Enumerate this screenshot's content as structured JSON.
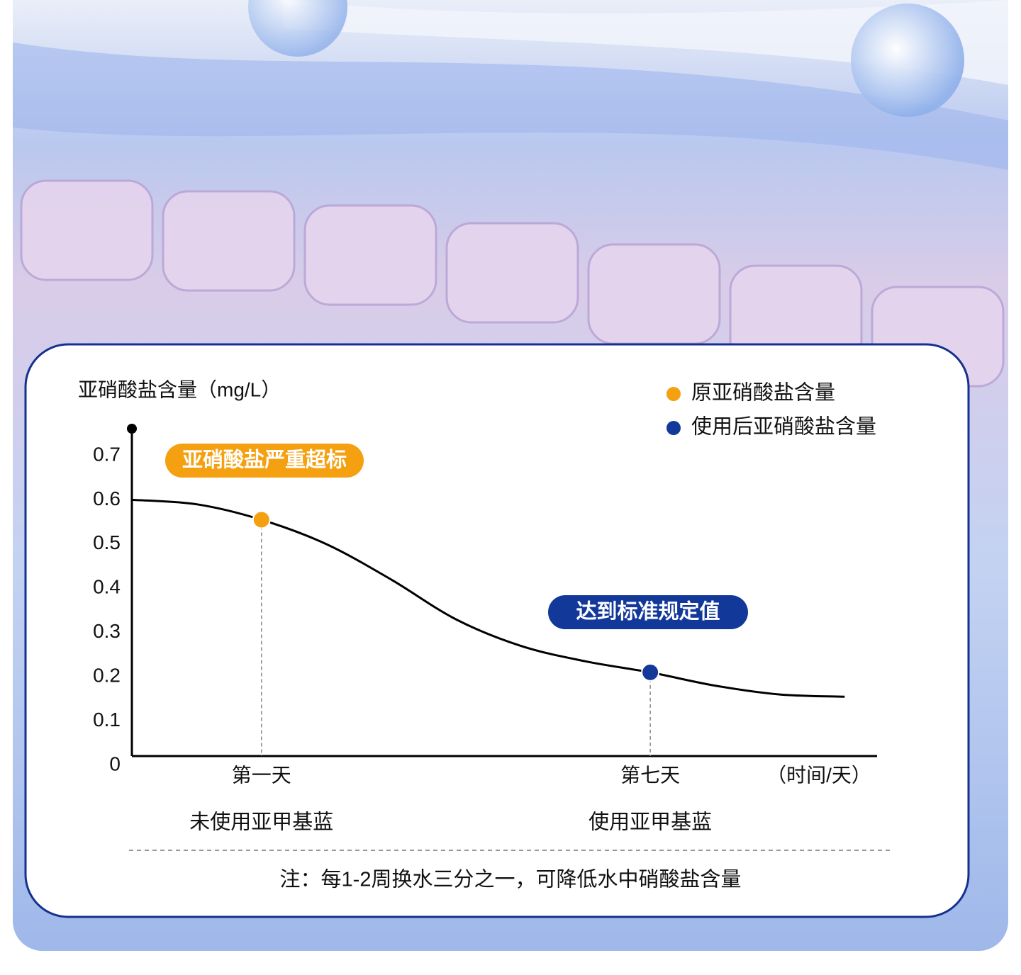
{
  "chart_data": {
    "type": "line",
    "y_axis_label": "亚硝酸盐含量（mg/L）",
    "x_axis_label": "（时间/天）",
    "xlim": [
      -1,
      10.5
    ],
    "xticks": [
      {
        "value": 1,
        "label": "第一天"
      },
      {
        "value": 7,
        "label": "第七天"
      }
    ],
    "x_sublabels": [
      "未使用亚甲基蓝",
      "使用亚甲基蓝"
    ],
    "ylim": [
      0,
      0.75
    ],
    "yticks": [
      0,
      0.1,
      0.2,
      0.3,
      0.4,
      0.5,
      0.6,
      0.7
    ],
    "curve": {
      "color": "#000000",
      "x": [
        -1,
        0,
        1,
        2,
        3,
        4,
        5,
        6,
        7,
        8,
        9,
        10
      ],
      "values": [
        0.6,
        0.59,
        0.555,
        0.5,
        0.42,
        0.33,
        0.27,
        0.235,
        0.21,
        0.18,
        0.16,
        0.155
      ]
    },
    "series": [
      {
        "name": "原亚硝酸盐含量",
        "color": "#f5a011",
        "x": [
          1
        ],
        "values": [
          0.555
        ]
      },
      {
        "name": "使用后亚硝酸盐含量",
        "color": "#12389a",
        "x": [
          7
        ],
        "values": [
          0.21
        ]
      }
    ],
    "annotations": [
      {
        "text": "亚硝酸盐严重超标",
        "color": "#f5a011"
      },
      {
        "text": "达到标准规定值",
        "color": "#12389a"
      }
    ],
    "note": "注：每1-2周换水三分之一，可降低水中硝酸盐含量"
  }
}
